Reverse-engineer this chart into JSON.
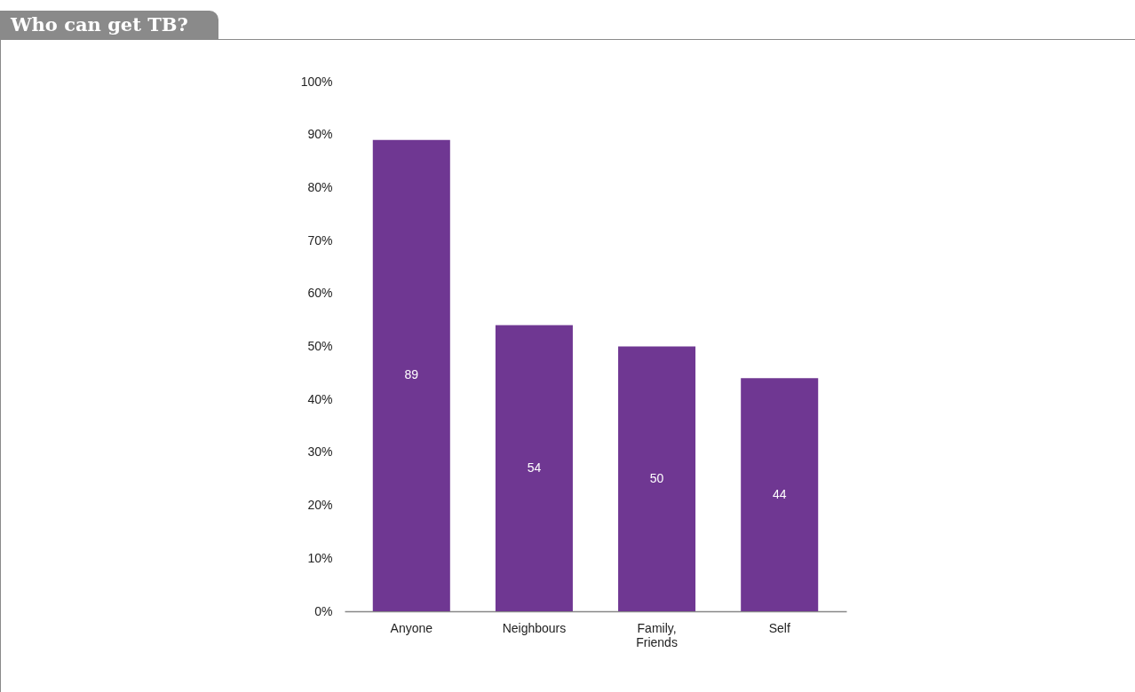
{
  "chart_data": {
    "type": "bar",
    "title": "Who can get TB?",
    "categories": [
      "Anyone",
      "Neighbours",
      "Family, Friends",
      "Self"
    ],
    "values": [
      89,
      54,
      50,
      44
    ],
    "color": "#6f3792",
    "ylim": [
      0,
      100
    ],
    "yticks": [
      {
        "value": 0,
        "label": "0%"
      },
      {
        "value": 10,
        "label": "10%"
      },
      {
        "value": 20,
        "label": "20%"
      },
      {
        "value": 30,
        "label": "30%"
      },
      {
        "value": 40,
        "label": "40%"
      },
      {
        "value": 50,
        "label": "50%"
      },
      {
        "value": 60,
        "label": "60%"
      },
      {
        "value": 70,
        "label": "70%"
      },
      {
        "value": 80,
        "label": "80%"
      },
      {
        "value": 90,
        "label": "90%"
      },
      {
        "value": 100,
        "label": "100%"
      }
    ],
    "grid": false,
    "data_labels": true
  }
}
